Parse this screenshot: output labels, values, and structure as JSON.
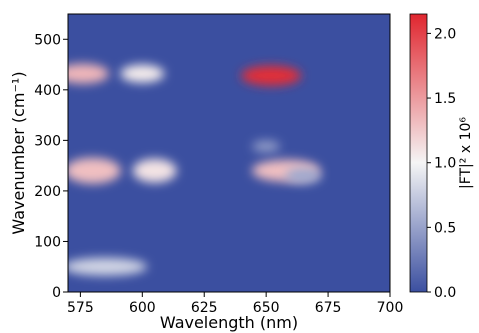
{
  "colors": {
    "low": "#3b4fa0",
    "mid": "#f5f5f5",
    "high": "#e0262f"
  },
  "chart_data": {
    "type": "heatmap",
    "title": "",
    "xlabel": "Wavelength (nm)",
    "ylabel": "Wavenumber (cm⁻¹)",
    "colorbar_label": "|FT|² x 10⁶",
    "xlim": [
      570,
      700
    ],
    "ylim": [
      0,
      550
    ],
    "x_ticks": [
      575,
      600,
      625,
      650,
      675,
      700
    ],
    "y_ticks": [
      0,
      100,
      200,
      300,
      400,
      500
    ],
    "colorbar_range": [
      0,
      2.15
    ],
    "colorbar_ticks": [
      0.0,
      0.5,
      1.0,
      1.5,
      2.0
    ],
    "colorbar_tick_labels": [
      "0.0",
      "0.5",
      "1.0",
      "1.5",
      "2.0"
    ],
    "grid": false,
    "peaks": [
      {
        "x": 652,
        "y": 428,
        "value": 2.1
      },
      {
        "x": 576,
        "y": 432,
        "value": 1.35
      },
      {
        "x": 600,
        "y": 432,
        "value": 1.05
      },
      {
        "x": 580,
        "y": 240,
        "value": 1.3
      },
      {
        "x": 605,
        "y": 240,
        "value": 1.1
      },
      {
        "x": 658,
        "y": 240,
        "value": 1.3
      },
      {
        "x": 585,
        "y": 50,
        "value": 0.8
      },
      {
        "x": 650,
        "y": 288,
        "value": 0.45
      },
      {
        "x": 665,
        "y": 230,
        "value": 0.55
      }
    ]
  }
}
